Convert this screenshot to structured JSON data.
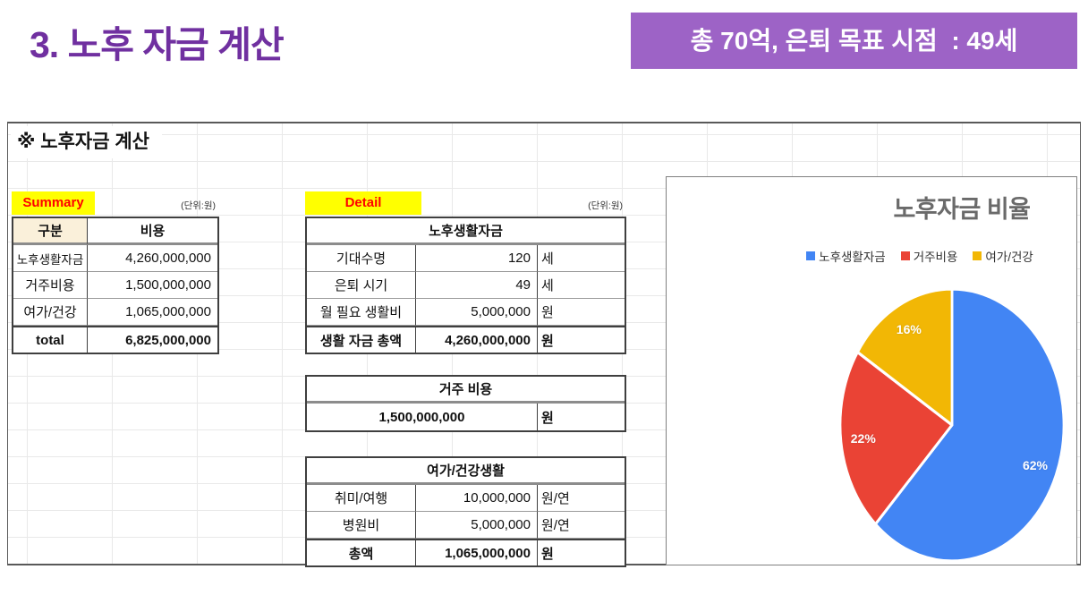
{
  "slide": {
    "title": "3. 노후 자금 계산",
    "badge": "총 70억, 은퇴 목표 시점  : 49세"
  },
  "sheet": {
    "title": "※ 노후자금 계산",
    "summary": {
      "label": "Summary",
      "unit_note": "(단위:원)",
      "headers": [
        "구분",
        "비용"
      ],
      "rows": [
        [
          "노후생활자금",
          "4,260,000,000"
        ],
        [
          "거주비용",
          "1,500,000,000"
        ],
        [
          "여가/건강",
          "1,065,000,000"
        ]
      ],
      "total_row": [
        "total",
        "6,825,000,000"
      ]
    },
    "detail": {
      "label": "Detail",
      "unit_note": "(단위:원)",
      "life_table": {
        "header": "노후생활자금",
        "rows": [
          [
            "기대수명",
            "120",
            "세"
          ],
          [
            "은퇴 시기",
            "49",
            "세"
          ],
          [
            "월 필요 생활비",
            "5,000,000",
            "원"
          ]
        ],
        "total_row": [
          "생활 자금 총액",
          "4,260,000,000",
          "원"
        ]
      },
      "housing_table": {
        "header": "거주 비용",
        "value": "1,500,000,000",
        "unit": "원"
      },
      "leisure_table": {
        "header": "여가/건강생활",
        "rows": [
          [
            "취미/여행",
            "10,000,000",
            "원/연"
          ],
          [
            "병원비",
            "5,000,000",
            "원/연"
          ]
        ],
        "total_row": [
          "총액",
          "1,065,000,000",
          "원"
        ]
      }
    }
  },
  "chart_data": {
    "type": "pie",
    "title": "노후자금 비율",
    "categories": [
      "노후생활자금",
      "거주비용",
      "여가/건강"
    ],
    "values": [
      62,
      22,
      16
    ],
    "value_labels": [
      "62%",
      "22%",
      "16%"
    ],
    "colors": [
      "#4285F4",
      "#EA4335",
      "#F2B705"
    ],
    "legend_position": "top",
    "start_angle_deg": 0,
    "direction": "clockwise"
  },
  "colors": {
    "title_purple": "#7030A0",
    "badge_bg": "#9D63C6",
    "highlight_yellow": "#FFFF00",
    "label_red": "#FF0000",
    "header_cream": "#FAF0DA",
    "chart_title_gray": "#6A6A6A"
  }
}
